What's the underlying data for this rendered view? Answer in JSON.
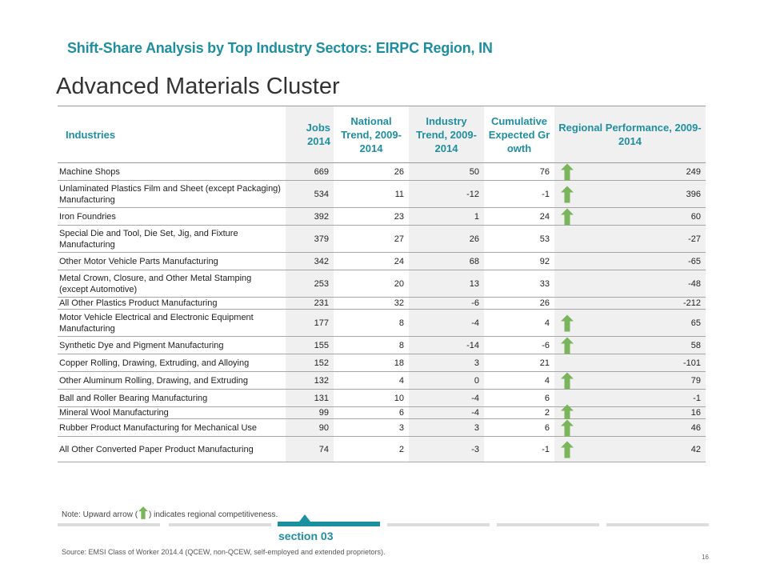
{
  "header": {
    "subtitle": "Shift-Share Analysis by Top Industry Sectors: EIRPC Region, IN",
    "title": "Advanced Materials Cluster"
  },
  "table": {
    "columns": [
      "Industries",
      "Jobs 2014",
      "National Trend, 2009-2014",
      "Industry Trend, 2009-2014",
      "Cumulative Expected Growth",
      "Regional Performance, 2009-2014"
    ],
    "rows": [
      {
        "name": "Machine Shops",
        "jobs": "669",
        "national": "26",
        "industry": "50",
        "cumulative": "76",
        "regional": "249",
        "arrow": true
      },
      {
        "name": "Unlaminated Plastics Film and Sheet (except Packaging) Manufacturing",
        "jobs": "534",
        "national": "11",
        "industry": "-12",
        "cumulative": "-1",
        "regional": "396",
        "arrow": true
      },
      {
        "name": "Iron Foundries",
        "jobs": "392",
        "national": "23",
        "industry": "1",
        "cumulative": "24",
        "regional": "60",
        "arrow": true
      },
      {
        "name": "Special Die and Tool, Die Set, Jig, and Fixture Manufacturing",
        "jobs": "379",
        "national": "27",
        "industry": "26",
        "cumulative": "53",
        "regional": "-27",
        "arrow": false
      },
      {
        "name": "Other Motor Vehicle Parts Manufacturing",
        "jobs": "342",
        "national": "24",
        "industry": "68",
        "cumulative": "92",
        "regional": "-65",
        "arrow": false
      },
      {
        "name": "Metal Crown, Closure, and Other Metal Stamping (except Automotive)",
        "jobs": "253",
        "national": "20",
        "industry": "13",
        "cumulative": "33",
        "regional": "-48",
        "arrow": false
      },
      {
        "name": "All Other Plastics Product Manufacturing",
        "jobs": "231",
        "national": "32",
        "industry": "-6",
        "cumulative": "26",
        "regional": "-212",
        "arrow": false
      },
      {
        "name": "Motor Vehicle Electrical and Electronic Equipment Manufacturing",
        "jobs": "177",
        "national": "8",
        "industry": "-4",
        "cumulative": "4",
        "regional": "65",
        "arrow": true
      },
      {
        "name": "Synthetic Dye and Pigment Manufacturing",
        "jobs": "155",
        "national": "8",
        "industry": "-14",
        "cumulative": "-6",
        "regional": "58",
        "arrow": true
      },
      {
        "name": "Copper Rolling, Drawing, Extruding, and Alloying",
        "jobs": "152",
        "national": "18",
        "industry": "3",
        "cumulative": "21",
        "regional": "-101",
        "arrow": false
      },
      {
        "name": "Other Aluminum Rolling, Drawing, and Extruding",
        "jobs": "132",
        "national": "4",
        "industry": "0",
        "cumulative": "4",
        "regional": "79",
        "arrow": true
      },
      {
        "name": "Ball and Roller Bearing Manufacturing",
        "jobs": "131",
        "national": "10",
        "industry": "-4",
        "cumulative": "6",
        "regional": "-1",
        "arrow": false
      },
      {
        "name": "Mineral Wool Manufacturing",
        "jobs": "99",
        "national": "6",
        "industry": "-4",
        "cumulative": "2",
        "regional": "16",
        "arrow": true
      },
      {
        "name": "Rubber Product Manufacturing for Mechanical Use",
        "jobs": "90",
        "national": "3",
        "industry": "3",
        "cumulative": "6",
        "regional": "46",
        "arrow": true
      },
      {
        "name": "All Other Converted Paper Product Manufacturing",
        "jobs": "74",
        "national": "2",
        "industry": "-3",
        "cumulative": "-1",
        "regional": "42",
        "arrow": true
      }
    ]
  },
  "note": {
    "before": "Note: Upward arrow (",
    "after": ") indicates regional competitiveness."
  },
  "footer": {
    "section": "section 03",
    "source": "Source: EMSI Class of Worker 2014.4 (QCEW, non-QCEW, self-employed and extended proprietors).",
    "page": "16"
  },
  "colors": {
    "accent": "#1f8ea0",
    "arrow": "#7ab55c"
  }
}
